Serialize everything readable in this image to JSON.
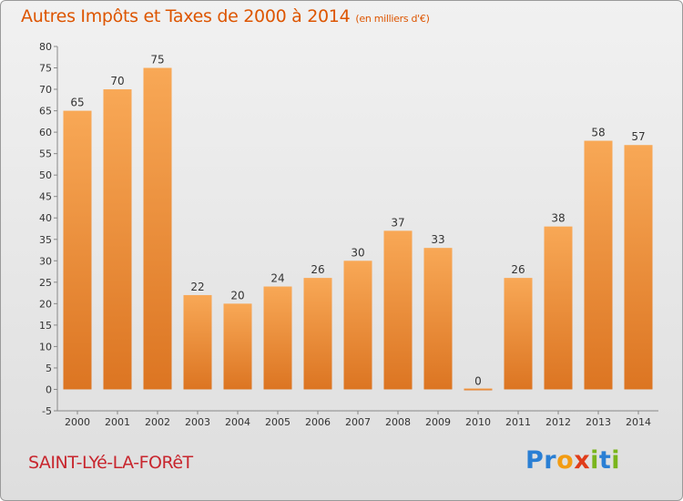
{
  "title": "Autres Impôts et Taxes de 2000 à 2014",
  "title_unit": "(en milliers d'€)",
  "place_name": "SAINT-LYé-LA-FORêT",
  "logo": {
    "letters": [
      {
        "char": "P",
        "color": "#2a7fd4"
      },
      {
        "char": "r",
        "color": "#2a7fd4"
      },
      {
        "char": "o",
        "color": "#f39c12"
      },
      {
        "char": "x",
        "color": "#e03c1a"
      },
      {
        "char": "i",
        "color": "#7ab51d"
      },
      {
        "char": "t",
        "color": "#2a7fd4"
      },
      {
        "char": "i",
        "color": "#7ab51d"
      }
    ]
  },
  "colors": {
    "bar_top": "#f8a856",
    "bar_bottom": "#dc7522",
    "title": "#dd5500",
    "place": "#c8262e"
  },
  "chart_data": {
    "type": "bar",
    "title": "Autres Impôts et Taxes de 2000 à 2014",
    "xlabel": "",
    "ylabel": "",
    "ylim": [
      -5,
      80
    ],
    "ytick_step": 5,
    "grid": false,
    "categories": [
      "2000",
      "2001",
      "2002",
      "2003",
      "2004",
      "2005",
      "2006",
      "2007",
      "2008",
      "2009",
      "2010",
      "2011",
      "2012",
      "2013",
      "2014"
    ],
    "values": [
      65,
      70,
      75,
      22,
      20,
      24,
      26,
      30,
      37,
      33,
      0,
      26,
      38,
      58,
      57
    ]
  }
}
